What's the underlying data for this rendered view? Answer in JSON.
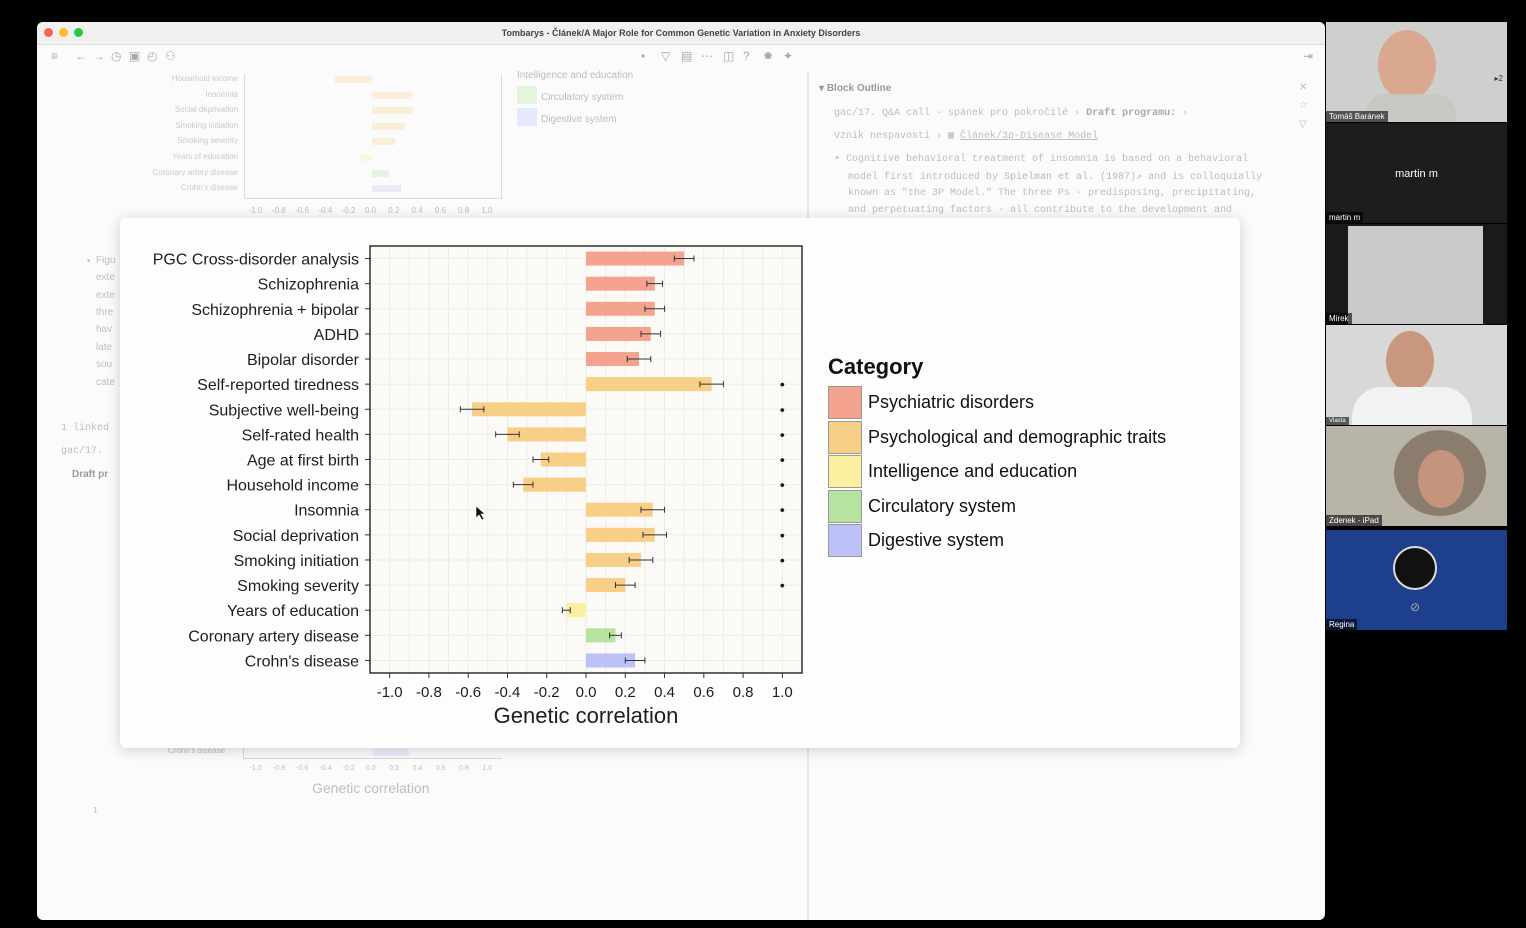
{
  "window": {
    "title": "Tombarys - Článek/A Major Role for Common Genetic Variation in Anxiety Disorders"
  },
  "background": {
    "small_chart_labels": [
      "Household income",
      "Insomnia",
      "Social deprivation",
      "Smoking initiation",
      "Smoking severity",
      "Years of education",
      "Coronary artery disease",
      "Crohn's disease"
    ],
    "small_chart_ticks": [
      "-1.0",
      "-0.8",
      "-0.6",
      "-0.4",
      "-0.2",
      "0.0",
      "0.2",
      "0.4",
      "0.6",
      "0.8",
      "1.0"
    ],
    "small_legend": [
      "Intelligence and education",
      "Circulatory system",
      "Digestive system"
    ],
    "left_snips": [
      "Figu",
      "exte",
      "exte",
      "thre",
      "hav",
      "late",
      "sou",
      "cate"
    ],
    "linked": "1 linked",
    "gac": "gac/17.",
    "draft": "Draft pr",
    "bottom_label": "Crohn's disease",
    "bottom_xlabel": "Genetic correlation",
    "bottom_num": "1",
    "outline_title": "Block Outline",
    "crumb1": "gac/17. Q&A call - spánek pro pokročilé",
    "crumb2": "Draft programu:",
    "crumb3": "Vznik nespavosti",
    "crumb4": "Článek/3p-Disease Model",
    "para1": "Cognitive behavioral treatment of insomnia is based on a behavioral",
    "para2a": "model first introduced by",
    "para2b": "Spielman et al. (1987)",
    "para2c": "and is colloquially",
    "para3": "known as \"the 3P Model.\" The three Ps - predisposing, precipitating,",
    "para4": "and perpetuating factors - all contribute to the development and"
  },
  "chart_data": {
    "type": "bar",
    "orientation": "horizontal",
    "categories": [
      "PGC Cross-disorder analysis",
      "Schizophrenia",
      "Schizophrenia + bipolar",
      "ADHD",
      "Bipolar disorder",
      "Self-reported tiredness",
      "Subjective well-being",
      "Self-rated health",
      "Age at first birth",
      "Household income",
      "Insomnia",
      "Social deprivation",
      "Smoking initiation",
      "Smoking severity",
      "Years of education",
      "Coronary artery disease",
      "Crohn's disease"
    ],
    "values": [
      0.5,
      0.35,
      0.35,
      0.33,
      0.27,
      0.64,
      -0.58,
      -0.4,
      -0.23,
      -0.32,
      0.34,
      0.35,
      0.28,
      0.2,
      -0.1,
      0.15,
      0.25
    ],
    "errors": [
      0.05,
      0.04,
      0.05,
      0.05,
      0.06,
      0.06,
      0.06,
      0.06,
      0.04,
      0.05,
      0.06,
      0.06,
      0.06,
      0.05,
      0.02,
      0.03,
      0.05
    ],
    "groups": [
      "Psychiatric disorders",
      "Psychiatric disorders",
      "Psychiatric disorders",
      "Psychiatric disorders",
      "Psychiatric disorders",
      "Psychological and demographic traits",
      "Psychological and demographic traits",
      "Psychological and demographic traits",
      "Psychological and demographic traits",
      "Psychological and demographic traits",
      "Psychological and demographic traits",
      "Psychological and demographic traits",
      "Psychological and demographic traits",
      "Psychological and demographic traits",
      "Intelligence and education",
      "Circulatory system",
      "Digestive system"
    ],
    "significant": [
      false,
      false,
      false,
      false,
      false,
      true,
      true,
      true,
      true,
      true,
      true,
      true,
      true,
      true,
      false,
      false,
      false
    ],
    "significance_marker": "•",
    "xlabel": "Genetic correlation",
    "xlim": [
      -1.1,
      1.1
    ],
    "xticks": [
      "-1.0",
      "-0.8",
      "-0.6",
      "-0.4",
      "-0.2",
      "0.0",
      "0.2",
      "0.4",
      "0.6",
      "0.8",
      "1.0"
    ],
    "legend_title": "Category",
    "legend": [
      {
        "name": "Psychiatric disorders",
        "color": "#f4a48e"
      },
      {
        "name": "Psychological and demographic traits",
        "color": "#f8cf86"
      },
      {
        "name": "Intelligence and education",
        "color": "#fbf0a0"
      },
      {
        "name": "Circulatory system",
        "color": "#b7e3a0"
      },
      {
        "name": "Digestive system",
        "color": "#bcc2f7"
      }
    ],
    "legend_position": "right",
    "grid": true
  },
  "participants": [
    {
      "name": "Tomáš Baránek",
      "pip": "▸2"
    },
    {
      "name": "martin m",
      "center": "martin m"
    },
    {
      "name": "Mirek"
    },
    {
      "name": "Vlasta"
    },
    {
      "name": "Zdenek - iPad"
    },
    {
      "name": "Regina"
    }
  ]
}
